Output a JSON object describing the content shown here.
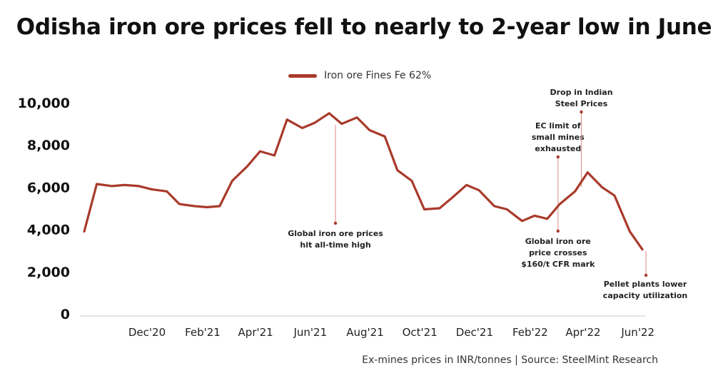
{
  "title": "Odisha iron ore prices fell to nearly to 2-year low in June",
  "source": "Ex-mines prices in INR/tonnes  |  Source: SteelMint Research",
  "colors": {
    "line": "#a93a2b",
    "annotation_line": "#d98a80",
    "axis": "#cccccc"
  },
  "chart_data": {
    "type": "line",
    "title": "Odisha iron ore prices fell to nearly to 2-year low in June",
    "xlabel": "",
    "ylabel": "",
    "ylim": [
      0,
      10000
    ],
    "yticks": [
      "0",
      "2,000",
      "4,000",
      "6,000",
      "8,000",
      "10,000"
    ],
    "xticks": [
      "Dec'20",
      "Feb'21",
      "Apr'21",
      "Jun'21",
      "Aug'21",
      "Oct'21",
      "Dec'21",
      "Feb'22",
      "Apr'22",
      "Jun'22"
    ],
    "grid": false,
    "legend_position": "top",
    "series": [
      {
        "name": "Iron ore Fines Fe 62%",
        "x": [
          "2020-10-01",
          "2020-10-15",
          "2020-11-01",
          "2020-11-15",
          "2020-12-01",
          "2020-12-15",
          "2021-01-01",
          "2021-01-15",
          "2021-02-01",
          "2021-02-15",
          "2021-03-01",
          "2021-03-15",
          "2021-04-01",
          "2021-04-15",
          "2021-05-01",
          "2021-05-15",
          "2021-06-01",
          "2021-06-15",
          "2021-07-01",
          "2021-07-15",
          "2021-08-01",
          "2021-08-15",
          "2021-09-01",
          "2021-09-15",
          "2021-10-01",
          "2021-10-15",
          "2021-11-01",
          "2021-11-15",
          "2021-12-01",
          "2021-12-15",
          "2022-01-01",
          "2022-01-15",
          "2022-02-01",
          "2022-02-15",
          "2022-03-01",
          "2022-03-15",
          "2022-04-01",
          "2022-04-15",
          "2022-05-01",
          "2022-05-15",
          "2022-06-01",
          "2022-06-15"
        ],
        "values": [
          3900,
          6150,
          6050,
          6100,
          6050,
          5900,
          5800,
          5200,
          5100,
          5050,
          5100,
          6300,
          7000,
          7700,
          7500,
          9200,
          8800,
          9050,
          9500,
          9000,
          9300,
          8700,
          8400,
          6800,
          6300,
          4950,
          5000,
          5500,
          6100,
          5850,
          5100,
          4950,
          4400,
          4650,
          4500,
          5200,
          5800,
          6700,
          6000,
          5600,
          3900,
          3050
        ]
      }
    ],
    "annotations": [
      {
        "text": [
          "Global iron ore prices",
          "hit all-time high"
        ],
        "date": "2021-07-08"
      },
      {
        "text": [
          "EC limit of",
          "small mines",
          "exhausted"
        ],
        "date": "2022-03-13"
      },
      {
        "text": [
          "Global iron ore",
          "price crosses",
          "$160/t CFR mark"
        ],
        "date": "2022-03-13"
      },
      {
        "text": [
          "Drop in Indian",
          "Steel Prices"
        ],
        "date": "2022-04-08"
      },
      {
        "text": [
          "Pellet plants lower",
          "capacity utilization"
        ],
        "date": "2022-06-19"
      }
    ]
  }
}
